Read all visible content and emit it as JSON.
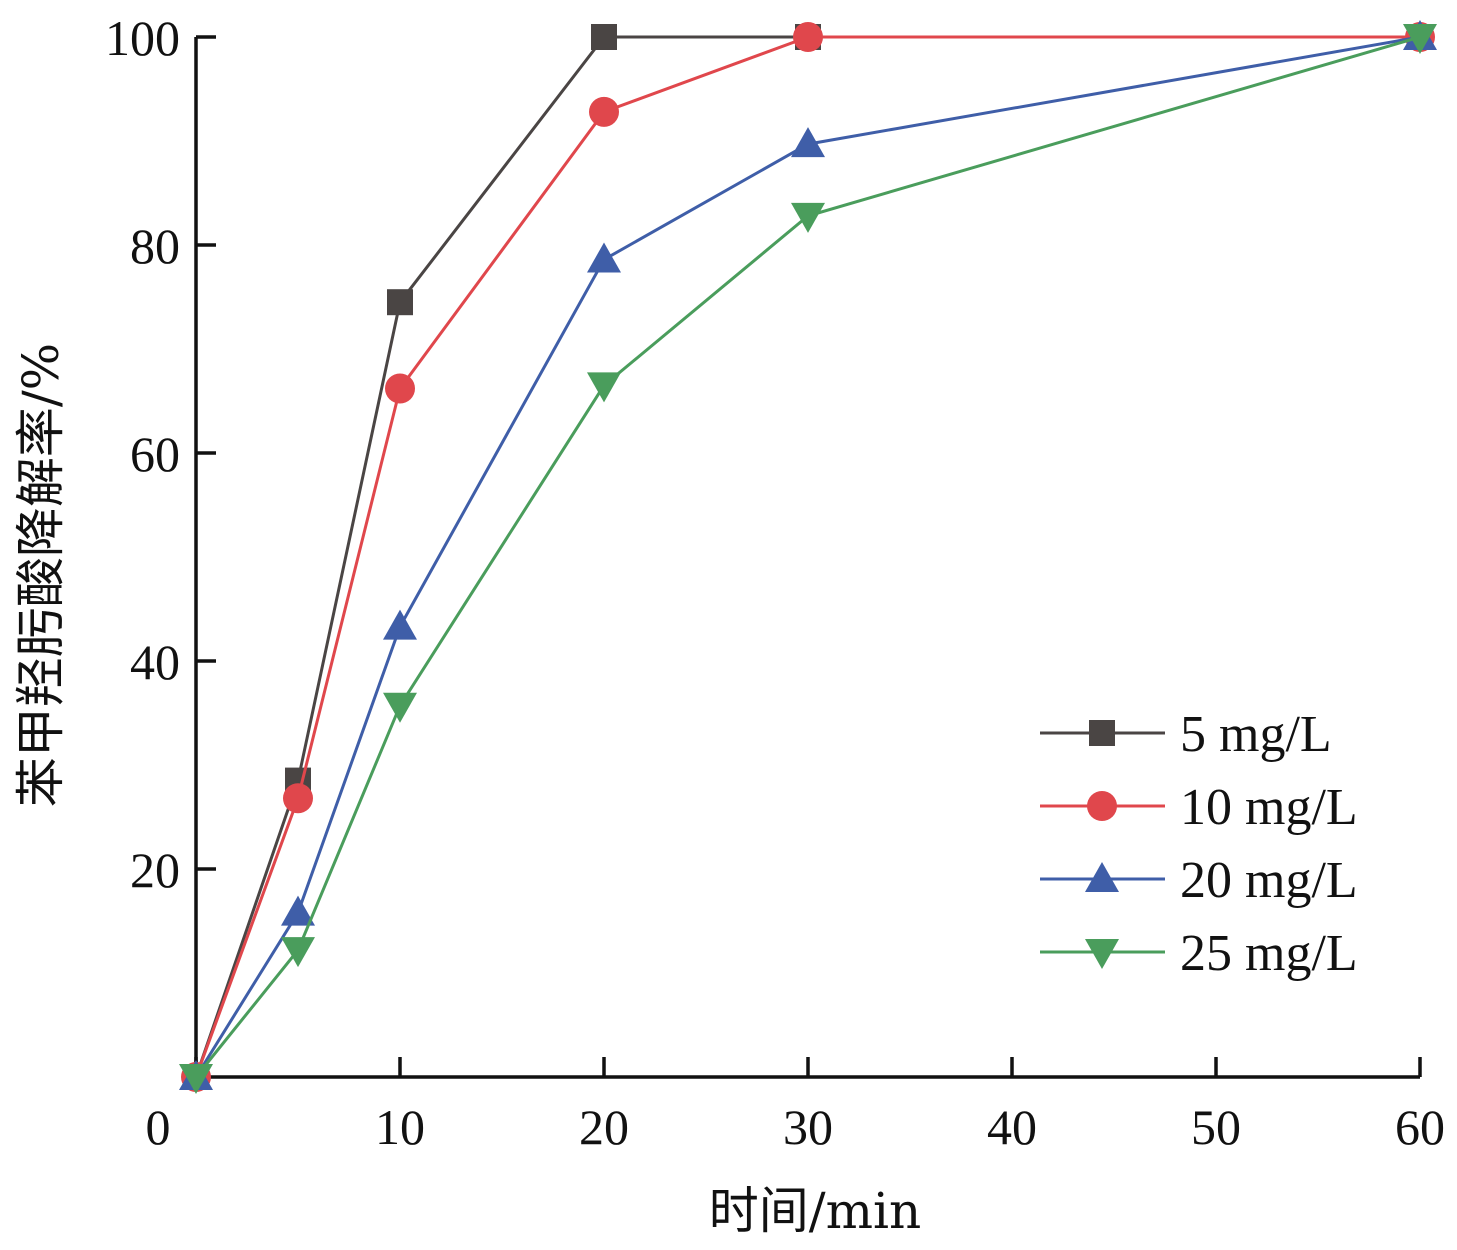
{
  "chart_data": {
    "type": "line",
    "xlabel": "时间/min",
    "ylabel": "苯甲羟肟酸降解率/%",
    "xlim": [
      0,
      60
    ],
    "ylim": [
      0,
      100
    ],
    "xticks": [
      "0",
      "10",
      "20",
      "30",
      "40",
      "50",
      "60"
    ],
    "yticks": [
      "20",
      "40",
      "60",
      "80",
      "100"
    ],
    "grid": false,
    "legend_position": "bottom-right",
    "x": [
      0,
      5,
      10,
      20,
      30,
      60
    ],
    "series": [
      {
        "name": "5 mg/L",
        "values": [
          0,
          28.5,
          74.5,
          100,
          100,
          100
        ],
        "color": "#4a4544",
        "marker": "square"
      },
      {
        "name": "10 mg/L",
        "values": [
          0,
          26.8,
          66.2,
          92.8,
          100,
          100
        ],
        "color": "#e0474c",
        "marker": "circle"
      },
      {
        "name": "20 mg/L",
        "values": [
          0,
          15.8,
          43.3,
          78.6,
          89.7,
          100
        ],
        "color": "#3f5ea8",
        "marker": "triangle-up"
      },
      {
        "name": "25 mg/L",
        "values": [
          0,
          12.2,
          35.7,
          66.5,
          82.8,
          100
        ],
        "color": "#4a9d5c",
        "marker": "triangle-down"
      }
    ]
  }
}
